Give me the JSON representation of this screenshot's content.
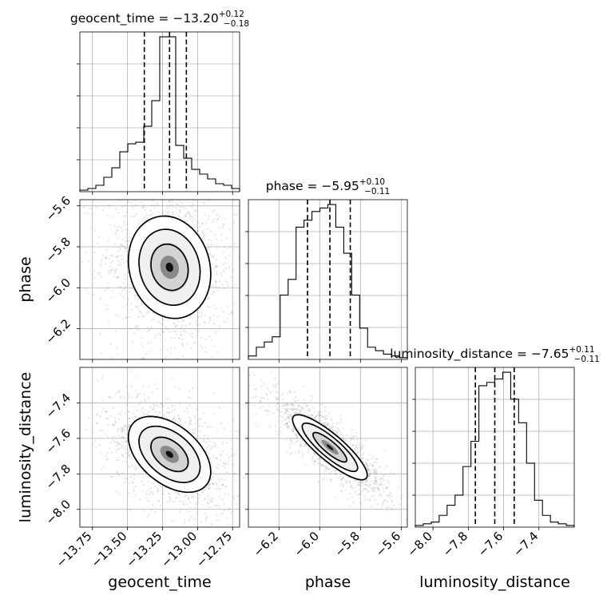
{
  "chart_data": {
    "type": "corner",
    "parameters": [
      "geocent_time",
      "phase",
      "luminosity_distance"
    ],
    "marginal_titles": [
      {
        "param": "geocent_time",
        "main": "geocent_time = −13.20",
        "sup": "+0.12",
        "sub": "−0.18"
      },
      {
        "param": "phase",
        "main": "phase = −5.95",
        "sup": "+0.10",
        "sub": "−0.11"
      },
      {
        "param": "luminosity_distance",
        "main": "luminosity_distance = −7.65",
        "sup": "+0.11",
        "sub": "−0.11"
      }
    ],
    "ranges": {
      "geocent_time": [
        -13.84,
        -12.7
      ],
      "phase": [
        -6.35,
        -5.57
      ],
      "luminosity_distance": [
        -8.1,
        -7.2
      ]
    },
    "ticks": {
      "geocent_time": {
        "values": [
          -13.75,
          -13.5,
          -13.25,
          -13.0,
          -12.75
        ],
        "labels": [
          "−13.75",
          "−13.50",
          "−13.25",
          "−13.00",
          "−12.75"
        ]
      },
      "phase_x": {
        "values": [
          -6.2,
          -6.0,
          -5.8,
          -5.6
        ],
        "labels": [
          "−6.2",
          "−6.0",
          "−5.8",
          "−5.6"
        ]
      },
      "phase_y": {
        "values": [
          -5.6,
          -5.8,
          -6.0,
          -6.2
        ],
        "labels": [
          "−5.6",
          "−5.8",
          "−6.0",
          "−6.2"
        ]
      },
      "luminosity_distance_x": {
        "values": [
          -8.0,
          -7.8,
          -7.6,
          -7.4
        ],
        "labels": [
          "−8.0",
          "−7.8",
          "−7.6",
          "−7.4"
        ]
      },
      "luminosity_distance_y": {
        "values": [
          -7.4,
          -7.6,
          -7.8,
          -8.0
        ],
        "labels": [
          "−7.4",
          "−7.6",
          "−7.8",
          "−8.0"
        ]
      }
    },
    "quantiles": {
      "geocent_time": [
        -13.38,
        -13.2,
        -13.08
      ],
      "phase": [
        -6.06,
        -5.95,
        -5.85
      ],
      "luminosity_distance": [
        -7.76,
        -7.65,
        -7.54
      ]
    },
    "histograms": {
      "geocent_time": {
        "start": -13.84,
        "step": 0.057,
        "counts": [
          1,
          2,
          4,
          9,
          15,
          25,
          30,
          31,
          41,
          57,
          97,
          97,
          29,
          21,
          14,
          11,
          8,
          5,
          4,
          2
        ]
      },
      "phase": {
        "start": -6.35,
        "step": 0.039,
        "counts": [
          2,
          7,
          10,
          13,
          37,
          46,
          76,
          80,
          85,
          87,
          89,
          76,
          61,
          37,
          18,
          7,
          5,
          3,
          2,
          1
        ]
      },
      "luminosity_distance": {
        "start": -8.1,
        "step": 0.045,
        "counts": [
          1,
          2,
          3,
          7,
          13,
          19,
          36,
          51,
          84,
          86,
          88,
          92,
          76,
          62,
          38,
          16,
          7,
          3,
          2,
          1
        ]
      }
    },
    "density_2d": [
      {
        "x": "geocent_time",
        "y": "phase",
        "peak": [
          -13.2,
          -5.9
        ],
        "cov": [
          [
            0.036,
            -0.004
          ],
          [
            -0.004,
            0.026
          ]
        ]
      },
      {
        "x": "geocent_time",
        "y": "luminosity_distance",
        "peak": [
          -13.2,
          -7.69
        ],
        "cov": [
          [
            0.036,
            -0.012
          ],
          [
            -0.012,
            0.019
          ]
        ]
      },
      {
        "x": "phase",
        "y": "luminosity_distance",
        "peak": [
          -5.95,
          -7.65
        ],
        "cov": [
          [
            0.014,
            -0.012
          ],
          [
            -0.012,
            0.014
          ]
        ]
      }
    ],
    "axis_labels": {
      "x": [
        "geocent_time",
        "phase",
        "luminosity_distance"
      ],
      "y": [
        "phase",
        "luminosity_distance"
      ]
    },
    "grid": true
  }
}
